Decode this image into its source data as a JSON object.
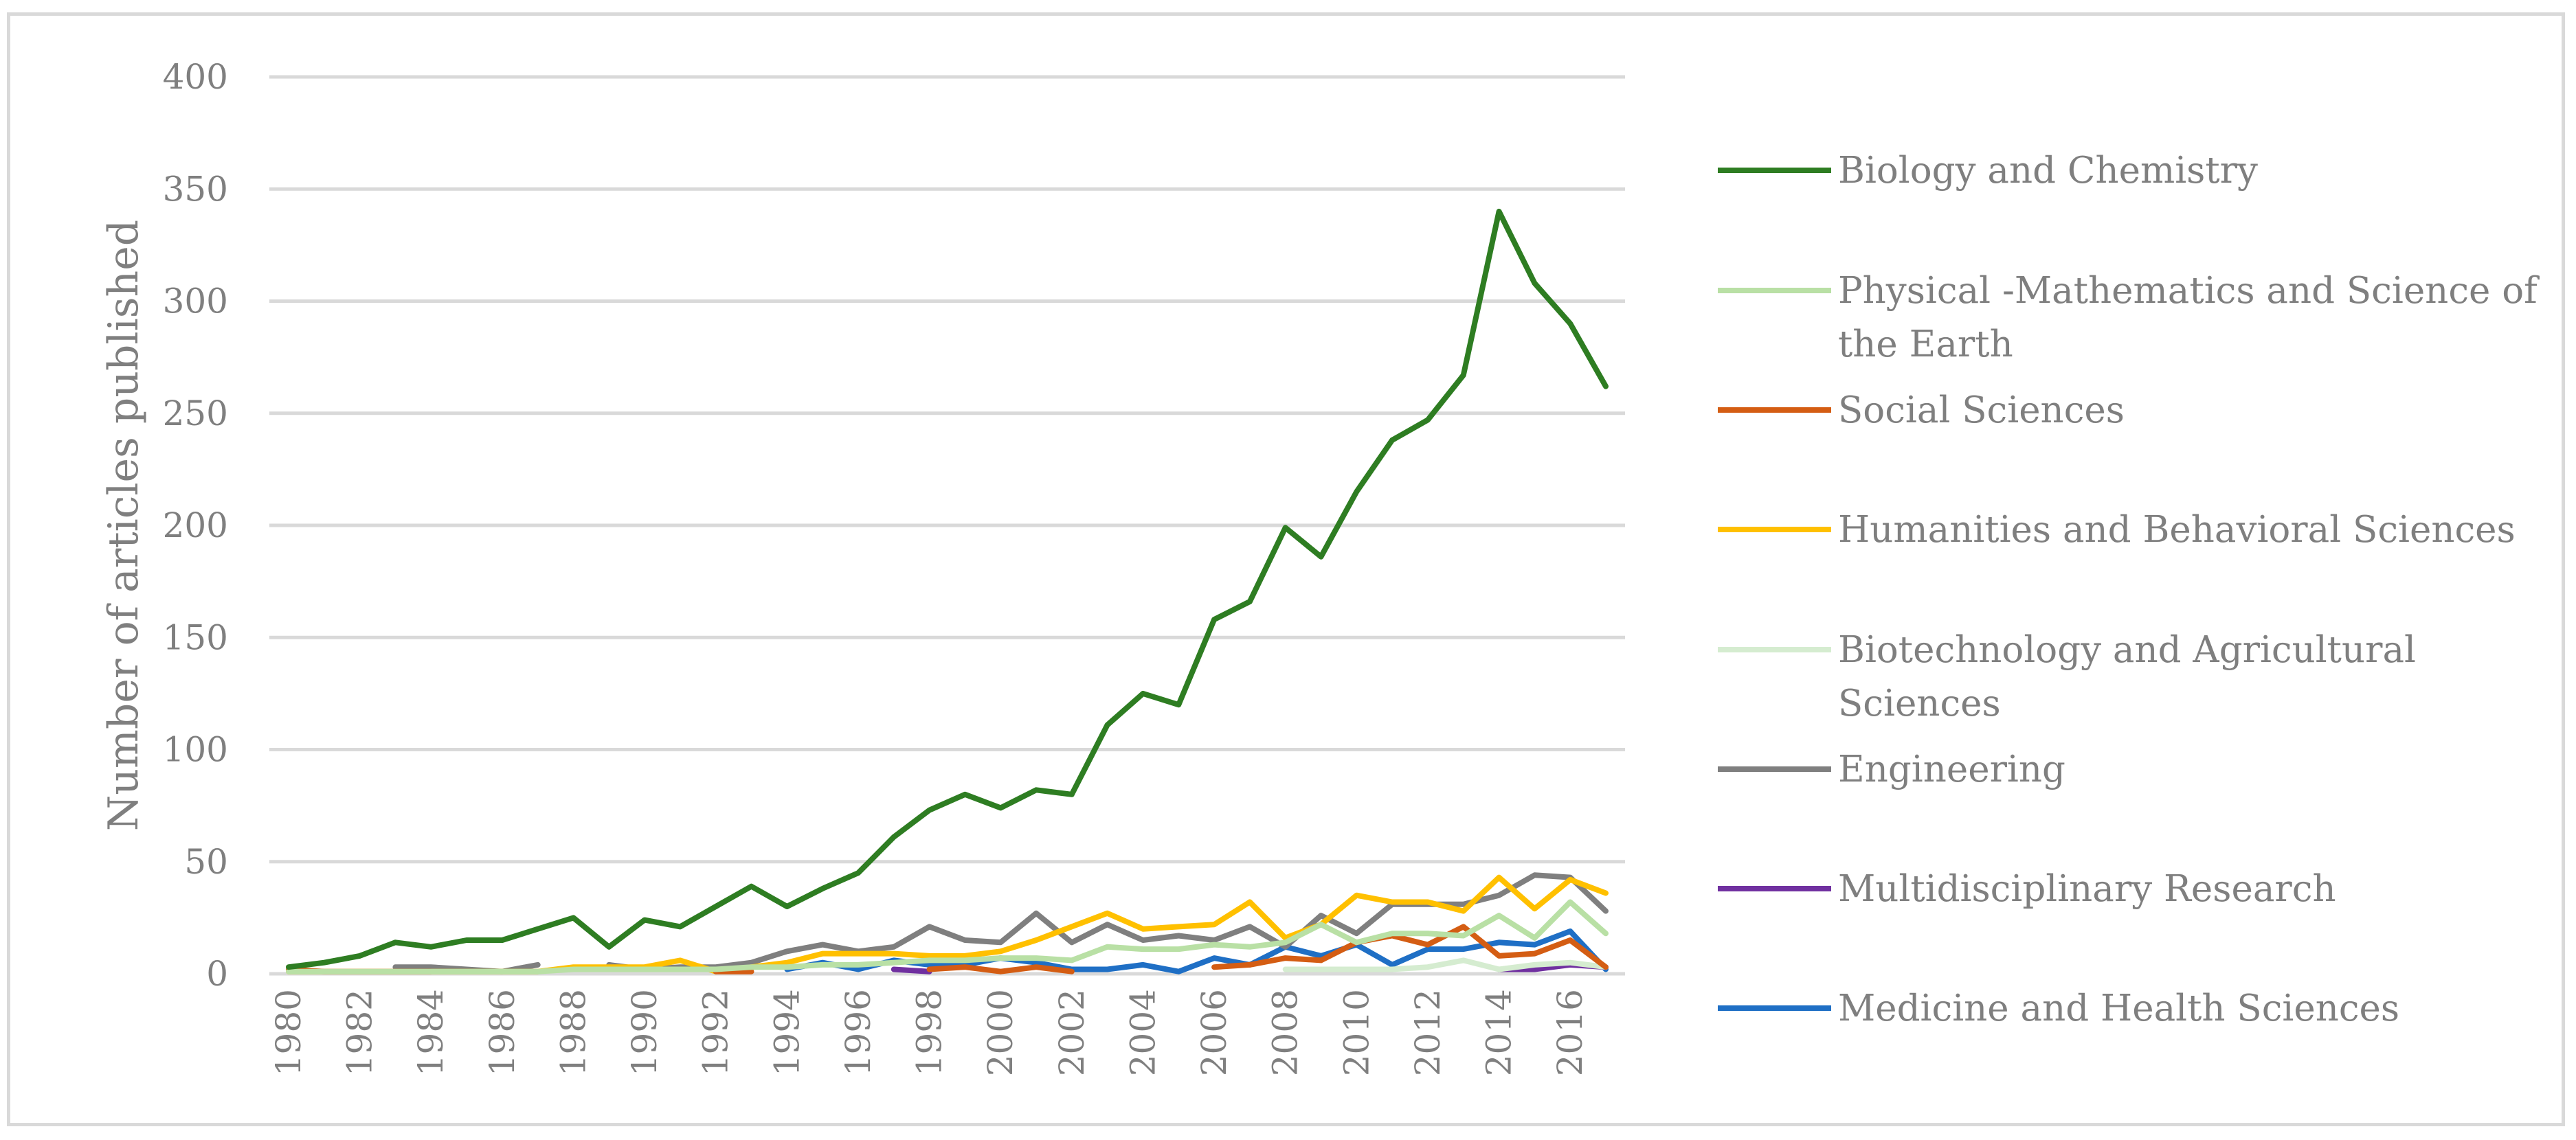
{
  "chart_data": {
    "type": "line",
    "title": "",
    "xlabel": "",
    "ylabel": "Number of articles published",
    "ylim": [
      0,
      400
    ],
    "yticks": [
      "0",
      "50",
      "100",
      "150",
      "200",
      "250",
      "300",
      "350",
      "400"
    ],
    "x": [
      1980,
      1981,
      1982,
      1983,
      1984,
      1985,
      1986,
      1987,
      1988,
      1989,
      1990,
      1991,
      1992,
      1993,
      1994,
      1995,
      1996,
      1997,
      1998,
      1999,
      2000,
      2001,
      2002,
      2003,
      2004,
      2005,
      2006,
      2007,
      2008,
      2009,
      2010,
      2011,
      2012,
      2013,
      2014,
      2015,
      2016,
      2017
    ],
    "xticks": [
      "1980",
      "1982",
      "1984",
      "1986",
      "1988",
      "1990",
      "1992",
      "1994",
      "1996",
      "1998",
      "2000",
      "2002",
      "2004",
      "2006",
      "2008",
      "2010",
      "2012",
      "2014",
      "2016"
    ],
    "grid": true,
    "legend_position": "right",
    "series": [
      {
        "name": "Biology and Chemistry",
        "color": "#2e7d22",
        "values": [
          3,
          5,
          8,
          14,
          12,
          15,
          15,
          20,
          25,
          12,
          24,
          21,
          30,
          39,
          30,
          38,
          45,
          61,
          73,
          80,
          74,
          82,
          80,
          111,
          125,
          120,
          158,
          166,
          199,
          186,
          215,
          238,
          247,
          267,
          340,
          308,
          290,
          262
        ]
      },
      {
        "name": "Physical -Mathematics and Science of the Earth",
        "color": "#b9e0a5",
        "values": [
          1,
          1,
          1,
          1,
          1,
          1,
          1,
          1,
          2,
          2,
          2,
          2,
          2,
          3,
          3,
          4,
          4,
          5,
          6,
          6,
          7,
          7,
          6,
          12,
          11,
          11,
          13,
          12,
          14,
          22,
          14,
          18,
          18,
          17,
          26,
          16,
          32,
          18
        ]
      },
      {
        "name": "Social Sciences",
        "color": "#d45d13",
        "values": [
          2,
          1,
          1,
          1,
          1,
          null,
          null,
          null,
          null,
          null,
          null,
          null,
          1,
          1,
          null,
          null,
          null,
          null,
          2,
          3,
          1,
          3,
          1,
          null,
          null,
          null,
          3,
          4,
          7,
          6,
          14,
          17,
          13,
          21,
          8,
          9,
          15,
          3
        ]
      },
      {
        "name": "Humanities and Behavioral Sciences",
        "color": "#ffc000",
        "values": [
          1,
          1,
          1,
          1,
          1,
          1,
          1,
          1,
          3,
          3,
          3,
          6,
          1,
          3,
          5,
          9,
          9,
          9,
          8,
          8,
          10,
          15,
          21,
          27,
          20,
          21,
          22,
          32,
          16,
          22,
          35,
          32,
          32,
          28,
          43,
          29,
          42,
          36
        ]
      },
      {
        "name": "Biotechnology and Agricultural Sciences",
        "color": "#d5ecd0",
        "values": [
          null,
          null,
          null,
          null,
          null,
          null,
          null,
          null,
          null,
          null,
          null,
          null,
          null,
          null,
          null,
          null,
          null,
          null,
          null,
          null,
          null,
          null,
          null,
          null,
          null,
          null,
          null,
          null,
          2,
          2,
          2,
          2,
          3,
          6,
          2,
          4,
          5,
          3
        ]
      },
      {
        "name": "Engineering",
        "color": "#7f7f7f",
        "values": [
          null,
          null,
          null,
          3,
          3,
          2,
          1,
          4,
          null,
          4,
          2,
          3,
          3,
          5,
          10,
          13,
          10,
          12,
          21,
          15,
          14,
          27,
          14,
          22,
          15,
          17,
          15,
          21,
          12,
          26,
          18,
          31,
          31,
          31,
          35,
          44,
          43,
          28
        ]
      },
      {
        "name": "Multidisciplinary Research",
        "color": "#7030a0",
        "values": [
          null,
          null,
          null,
          null,
          null,
          null,
          null,
          null,
          null,
          null,
          null,
          null,
          null,
          null,
          null,
          null,
          null,
          2,
          1,
          null,
          null,
          null,
          null,
          null,
          null,
          null,
          null,
          null,
          null,
          null,
          null,
          null,
          null,
          null,
          2,
          2,
          4,
          3
        ]
      },
      {
        "name": "Medicine and Health Sciences",
        "color": "#1f6fc5",
        "values": [
          null,
          null,
          null,
          null,
          null,
          null,
          null,
          null,
          null,
          null,
          null,
          null,
          null,
          null,
          2,
          5,
          2,
          6,
          4,
          4,
          7,
          5,
          2,
          2,
          4,
          1,
          7,
          4,
          12,
          8,
          13,
          4,
          11,
          11,
          14,
          13,
          19,
          2
        ]
      }
    ]
  }
}
